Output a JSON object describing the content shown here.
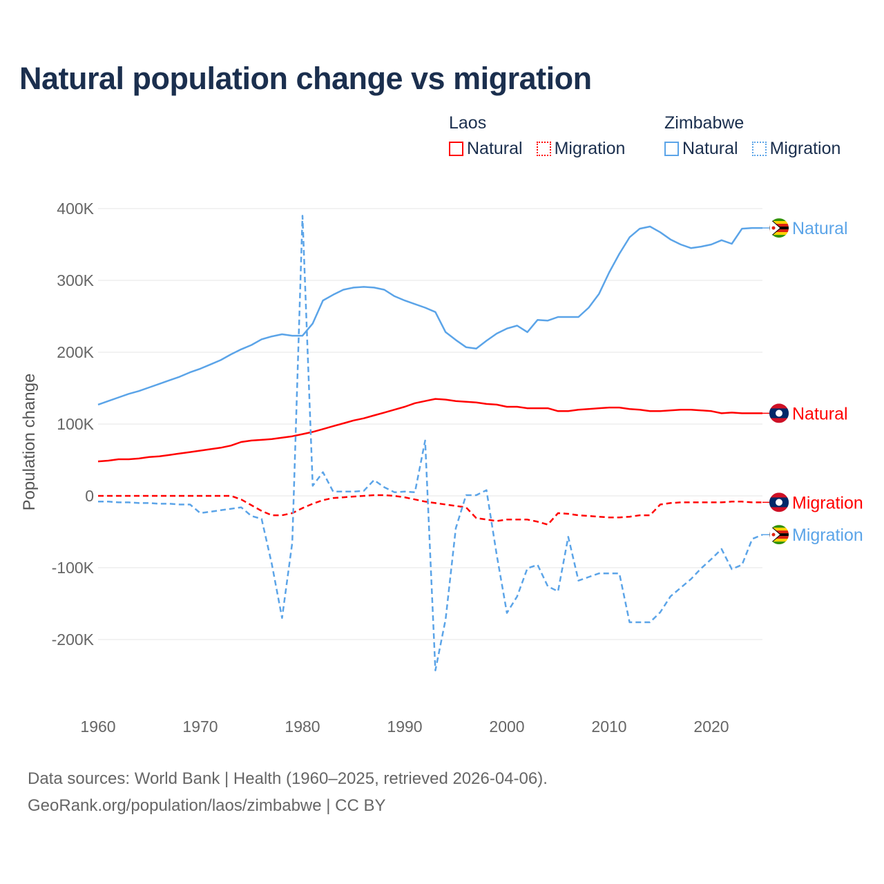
{
  "title": "Natural population change vs migration",
  "legend": [
    {
      "country": "Laos",
      "items": [
        {
          "label": "Natural",
          "color": "#ff0000",
          "style": "solid"
        },
        {
          "label": "Migration",
          "color": "#ff0000",
          "style": "dotted"
        }
      ]
    },
    {
      "country": "Zimbabwe",
      "items": [
        {
          "label": "Natural",
          "color": "#5ba4e8",
          "style": "solid"
        },
        {
          "label": "Migration",
          "color": "#5ba4e8",
          "style": "dotted"
        }
      ]
    }
  ],
  "source_line1": "Data sources: World Bank | Health (1960–2025, retrieved 2026-04-06).",
  "source_line2": "GeoRank.org/population/laos/zimbabwe | CC BY",
  "chart_data": {
    "type": "line",
    "title": "Natural population change vs migration",
    "xlabel": "",
    "ylabel": "Population change",
    "xlim": [
      1960,
      2025
    ],
    "ylim": [
      -260000,
      400000
    ],
    "yticks": [
      -200000,
      -100000,
      0,
      100000,
      200000,
      300000,
      400000
    ],
    "ytick_labels": [
      "-200K",
      "-100K",
      "0",
      "100K",
      "200K",
      "300K",
      "400K"
    ],
    "xticks": [
      1960,
      1970,
      1980,
      1990,
      2000,
      2010,
      2020
    ],
    "xtick_labels": [
      "1960",
      "1970",
      "1980",
      "1990",
      "2000",
      "2010",
      "2020"
    ],
    "grid": true,
    "legend_position": "top-right",
    "x_start": 1960,
    "series": [
      {
        "name": "Zimbabwe Natural",
        "end_label": "Natural",
        "flag": "zimbabwe",
        "color": "#5ba4e8",
        "dash": false,
        "values_k": [
          127,
          132,
          137,
          142,
          146,
          151,
          156,
          161,
          166,
          172,
          177,
          183,
          189,
          197,
          204,
          210,
          218,
          222,
          225,
          223,
          223,
          240,
          272,
          280,
          287,
          290,
          291,
          290,
          287,
          278,
          272,
          267,
          262,
          256,
          228,
          217,
          207,
          205,
          216,
          226,
          233,
          237,
          228,
          245,
          244,
          249,
          249,
          249,
          262,
          281,
          311,
          337,
          360,
          372,
          375,
          367,
          357,
          350,
          345,
          347,
          350,
          356,
          351,
          372,
          373,
          373
        ]
      },
      {
        "name": "Laos Natural",
        "end_label": "Natural",
        "flag": "laos",
        "color": "#ff0000",
        "dash": false,
        "values_k": [
          48,
          49,
          51,
          51,
          52,
          54,
          55,
          57,
          59,
          61,
          63,
          65,
          67,
          70,
          75,
          77,
          78,
          79,
          81,
          83,
          86,
          89,
          93,
          97,
          101,
          105,
          108,
          112,
          116,
          120,
          124,
          129,
          132,
          135,
          134,
          132,
          131,
          130,
          128,
          127,
          124,
          124,
          122,
          122,
          122,
          118,
          118,
          120,
          121,
          122,
          123,
          123,
          121,
          120,
          118,
          118,
          119,
          120,
          120,
          119,
          118,
          115,
          116,
          115,
          115,
          115
        ]
      },
      {
        "name": "Laos Migration",
        "end_label": "Migration",
        "flag": "laos",
        "color": "#ff0000",
        "dash": true,
        "values_k": [
          0,
          0,
          0,
          0,
          0,
          0,
          0,
          0,
          0,
          0,
          0,
          0,
          0,
          0,
          -5,
          -13,
          -21,
          -27,
          -27,
          -24,
          -17,
          -11,
          -6,
          -3,
          -2,
          -1,
          0,
          1,
          1,
          0,
          -2,
          -5,
          -8,
          -10,
          -12,
          -14,
          -16,
          -31,
          -33,
          -35,
          -33,
          -33,
          -33,
          -36,
          -40,
          -24,
          -25,
          -27,
          -28,
          -29,
          -30,
          -30,
          -29,
          -27,
          -27,
          -12,
          -10,
          -9,
          -9,
          -9,
          -9,
          -9,
          -8,
          -8,
          -9,
          -9
        ]
      },
      {
        "name": "Zimbabwe Migration",
        "end_label": "Migration",
        "flag": "zimbabwe",
        "color": "#5ba4e8",
        "dash": true,
        "values_k": [
          -8,
          -8,
          -9,
          -9,
          -10,
          -10,
          -11,
          -11,
          -12,
          -12,
          -24,
          -22,
          -20,
          -18,
          -16,
          -28,
          -32,
          -95,
          -170,
          -65,
          390,
          14,
          33,
          6,
          6,
          6,
          7,
          22,
          12,
          5,
          6,
          5,
          77,
          -243,
          -172,
          -45,
          1,
          1,
          8,
          -82,
          -163,
          -140,
          -101,
          -96,
          -126,
          -133,
          -57,
          -118,
          -113,
          -108,
          -108,
          -108,
          -176,
          -176,
          -176,
          -162,
          -140,
          -128,
          -116,
          -101,
          -88,
          -74,
          -102,
          -96,
          -60,
          -54
        ]
      }
    ]
  }
}
